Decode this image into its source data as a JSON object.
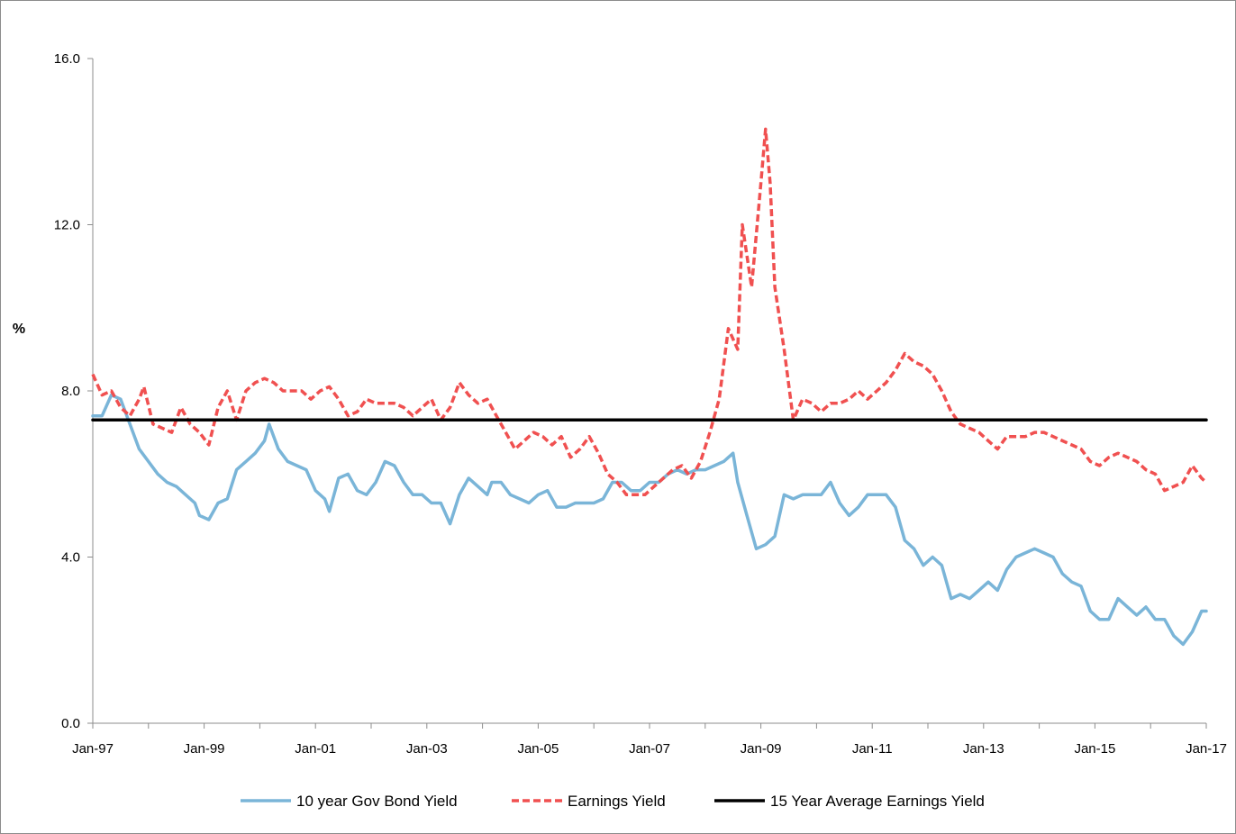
{
  "chart_data": {
    "type": "line",
    "ylabel": "%",
    "xlabel": "",
    "ylim": [
      0,
      16
    ],
    "y_ticks": [
      "0.0",
      "4.0",
      "8.0",
      "12.0",
      "16.0"
    ],
    "y_tick_values": [
      0,
      4,
      8,
      12,
      16
    ],
    "x_range": [
      "1997-01",
      "2017-01"
    ],
    "x_ticks": [
      "Jan-97",
      "Jan-99",
      "Jan-01",
      "Jan-03",
      "Jan-05",
      "Jan-07",
      "Jan-09",
      "Jan-11",
      "Jan-13",
      "Jan-15",
      "Jan-17"
    ],
    "x_tick_dates": [
      "1997-01",
      "1999-01",
      "2001-01",
      "2003-01",
      "2005-01",
      "2007-01",
      "2009-01",
      "2011-01",
      "2013-01",
      "2015-01",
      "2017-01"
    ],
    "grid": false,
    "legend_position": "bottom",
    "series": [
      {
        "name": "10 year Gov Bond Yield",
        "color": "#7ab5d8",
        "style": "solid",
        "points": [
          [
            "1997-01",
            7.4
          ],
          [
            "1997-03",
            7.4
          ],
          [
            "1997-05",
            7.9
          ],
          [
            "1997-07",
            7.8
          ],
          [
            "1997-09",
            7.2
          ],
          [
            "1997-11",
            6.6
          ],
          [
            "1998-01",
            6.3
          ],
          [
            "1998-03",
            6.0
          ],
          [
            "1998-05",
            5.8
          ],
          [
            "1998-07",
            5.7
          ],
          [
            "1998-09",
            5.5
          ],
          [
            "1998-11",
            5.3
          ],
          [
            "1998-12",
            5.0
          ],
          [
            "1999-02",
            4.9
          ],
          [
            "1999-04",
            5.3
          ],
          [
            "1999-06",
            5.4
          ],
          [
            "1999-08",
            6.1
          ],
          [
            "1999-10",
            6.3
          ],
          [
            "1999-12",
            6.5
          ],
          [
            "2000-02",
            6.8
          ],
          [
            "2000-03",
            7.2
          ],
          [
            "2000-05",
            6.6
          ],
          [
            "2000-07",
            6.3
          ],
          [
            "2000-09",
            6.2
          ],
          [
            "2000-11",
            6.1
          ],
          [
            "2001-01",
            5.6
          ],
          [
            "2001-03",
            5.4
          ],
          [
            "2001-04",
            5.1
          ],
          [
            "2001-06",
            5.9
          ],
          [
            "2001-08",
            6.0
          ],
          [
            "2001-10",
            5.6
          ],
          [
            "2001-12",
            5.5
          ],
          [
            "2002-02",
            5.8
          ],
          [
            "2002-04",
            6.3
          ],
          [
            "2002-06",
            6.2
          ],
          [
            "2002-08",
            5.8
          ],
          [
            "2002-10",
            5.5
          ],
          [
            "2002-12",
            5.5
          ],
          [
            "2003-02",
            5.3
          ],
          [
            "2003-04",
            5.3
          ],
          [
            "2003-06",
            4.8
          ],
          [
            "2003-08",
            5.5
          ],
          [
            "2003-10",
            5.9
          ],
          [
            "2003-12",
            5.7
          ],
          [
            "2004-02",
            5.5
          ],
          [
            "2004-03",
            5.8
          ],
          [
            "2004-05",
            5.8
          ],
          [
            "2004-07",
            5.5
          ],
          [
            "2004-09",
            5.4
          ],
          [
            "2004-11",
            5.3
          ],
          [
            "2005-01",
            5.5
          ],
          [
            "2005-03",
            5.6
          ],
          [
            "2005-05",
            5.2
          ],
          [
            "2005-07",
            5.2
          ],
          [
            "2005-09",
            5.3
          ],
          [
            "2005-11",
            5.3
          ],
          [
            "2006-01",
            5.3
          ],
          [
            "2006-03",
            5.4
          ],
          [
            "2006-05",
            5.8
          ],
          [
            "2006-07",
            5.8
          ],
          [
            "2006-09",
            5.6
          ],
          [
            "2006-11",
            5.6
          ],
          [
            "2007-01",
            5.8
          ],
          [
            "2007-03",
            5.8
          ],
          [
            "2007-05",
            6.0
          ],
          [
            "2007-07",
            6.1
          ],
          [
            "2007-09",
            6.0
          ],
          [
            "2007-11",
            6.1
          ],
          [
            "2008-01",
            6.1
          ],
          [
            "2008-03",
            6.2
          ],
          [
            "2008-05",
            6.3
          ],
          [
            "2008-07",
            6.5
          ],
          [
            "2008-08",
            5.8
          ],
          [
            "2008-10",
            5.0
          ],
          [
            "2008-12",
            4.2
          ],
          [
            "2009-02",
            4.3
          ],
          [
            "2009-04",
            4.5
          ],
          [
            "2009-06",
            5.5
          ],
          [
            "2009-08",
            5.4
          ],
          [
            "2009-10",
            5.5
          ],
          [
            "2009-12",
            5.5
          ],
          [
            "2010-02",
            5.5
          ],
          [
            "2010-04",
            5.8
          ],
          [
            "2010-06",
            5.3
          ],
          [
            "2010-08",
            5.0
          ],
          [
            "2010-10",
            5.2
          ],
          [
            "2010-12",
            5.5
          ],
          [
            "2011-02",
            5.5
          ],
          [
            "2011-04",
            5.5
          ],
          [
            "2011-06",
            5.2
          ],
          [
            "2011-08",
            4.4
          ],
          [
            "2011-10",
            4.2
          ],
          [
            "2011-12",
            3.8
          ],
          [
            "2012-02",
            4.0
          ],
          [
            "2012-04",
            3.8
          ],
          [
            "2012-06",
            3.0
          ],
          [
            "2012-08",
            3.1
          ],
          [
            "2012-10",
            3.0
          ],
          [
            "2012-12",
            3.2
          ],
          [
            "2013-02",
            3.4
          ],
          [
            "2013-04",
            3.2
          ],
          [
            "2013-06",
            3.7
          ],
          [
            "2013-08",
            4.0
          ],
          [
            "2013-10",
            4.1
          ],
          [
            "2013-12",
            4.2
          ],
          [
            "2014-02",
            4.1
          ],
          [
            "2014-04",
            4.0
          ],
          [
            "2014-06",
            3.6
          ],
          [
            "2014-08",
            3.4
          ],
          [
            "2014-10",
            3.3
          ],
          [
            "2014-12",
            2.7
          ],
          [
            "2015-02",
            2.5
          ],
          [
            "2015-04",
            2.5
          ],
          [
            "2015-06",
            3.0
          ],
          [
            "2015-08",
            2.8
          ],
          [
            "2015-10",
            2.6
          ],
          [
            "2015-12",
            2.8
          ],
          [
            "2016-02",
            2.5
          ],
          [
            "2016-04",
            2.5
          ],
          [
            "2016-06",
            2.1
          ],
          [
            "2016-08",
            1.9
          ],
          [
            "2016-10",
            2.2
          ],
          [
            "2016-12",
            2.7
          ],
          [
            "2017-01",
            2.7
          ]
        ]
      },
      {
        "name": "Earnings Yield",
        "color": "#f05050",
        "style": "dashed",
        "points": [
          [
            "1997-01",
            8.4
          ],
          [
            "1997-03",
            7.9
          ],
          [
            "1997-05",
            8.0
          ],
          [
            "1997-07",
            7.6
          ],
          [
            "1997-09",
            7.4
          ],
          [
            "1997-11",
            7.8
          ],
          [
            "1997-12",
            8.1
          ],
          [
            "1998-02",
            7.2
          ],
          [
            "1998-04",
            7.1
          ],
          [
            "1998-06",
            7.0
          ],
          [
            "1998-08",
            7.6
          ],
          [
            "1998-10",
            7.2
          ],
          [
            "1998-12",
            7.0
          ],
          [
            "1999-02",
            6.7
          ],
          [
            "1999-04",
            7.6
          ],
          [
            "1999-06",
            8.0
          ],
          [
            "1999-08",
            7.3
          ],
          [
            "1999-10",
            8.0
          ],
          [
            "1999-12",
            8.2
          ],
          [
            "2000-02",
            8.3
          ],
          [
            "2000-04",
            8.2
          ],
          [
            "2000-06",
            8.0
          ],
          [
            "2000-08",
            8.0
          ],
          [
            "2000-10",
            8.0
          ],
          [
            "2000-12",
            7.8
          ],
          [
            "2001-02",
            8.0
          ],
          [
            "2001-04",
            8.1
          ],
          [
            "2001-06",
            7.8
          ],
          [
            "2001-08",
            7.4
          ],
          [
            "2001-10",
            7.5
          ],
          [
            "2001-12",
            7.8
          ],
          [
            "2002-02",
            7.7
          ],
          [
            "2002-04",
            7.7
          ],
          [
            "2002-06",
            7.7
          ],
          [
            "2002-08",
            7.6
          ],
          [
            "2002-10",
            7.4
          ],
          [
            "2002-12",
            7.6
          ],
          [
            "2003-02",
            7.8
          ],
          [
            "2003-04",
            7.3
          ],
          [
            "2003-06",
            7.6
          ],
          [
            "2003-08",
            8.2
          ],
          [
            "2003-10",
            7.9
          ],
          [
            "2003-12",
            7.7
          ],
          [
            "2004-02",
            7.8
          ],
          [
            "2004-04",
            7.4
          ],
          [
            "2004-06",
            7.0
          ],
          [
            "2004-08",
            6.6
          ],
          [
            "2004-10",
            6.8
          ],
          [
            "2004-12",
            7.0
          ],
          [
            "2005-02",
            6.9
          ],
          [
            "2005-04",
            6.7
          ],
          [
            "2005-06",
            6.9
          ],
          [
            "2005-08",
            6.4
          ],
          [
            "2005-10",
            6.6
          ],
          [
            "2005-12",
            6.9
          ],
          [
            "2006-02",
            6.5
          ],
          [
            "2006-04",
            6.0
          ],
          [
            "2006-06",
            5.8
          ],
          [
            "2006-08",
            5.5
          ],
          [
            "2006-10",
            5.5
          ],
          [
            "2006-12",
            5.5
          ],
          [
            "2007-02",
            5.7
          ],
          [
            "2007-04",
            5.9
          ],
          [
            "2007-06",
            6.1
          ],
          [
            "2007-08",
            6.2
          ],
          [
            "2007-10",
            5.9
          ],
          [
            "2007-12",
            6.3
          ],
          [
            "2008-02",
            7.0
          ],
          [
            "2008-04",
            7.8
          ],
          [
            "2008-06",
            9.5
          ],
          [
            "2008-08",
            9.0
          ],
          [
            "2008-09",
            12.0
          ],
          [
            "2008-11",
            10.5
          ],
          [
            "2009-01",
            13.0
          ],
          [
            "2009-02",
            14.3
          ],
          [
            "2009-03",
            13.0
          ],
          [
            "2009-04",
            10.5
          ],
          [
            "2009-06",
            9.0
          ],
          [
            "2009-08",
            7.3
          ],
          [
            "2009-10",
            7.8
          ],
          [
            "2009-12",
            7.7
          ],
          [
            "2010-02",
            7.5
          ],
          [
            "2010-04",
            7.7
          ],
          [
            "2010-06",
            7.7
          ],
          [
            "2010-08",
            7.8
          ],
          [
            "2010-10",
            8.0
          ],
          [
            "2010-12",
            7.8
          ],
          [
            "2011-02",
            8.0
          ],
          [
            "2011-04",
            8.2
          ],
          [
            "2011-06",
            8.5
          ],
          [
            "2011-08",
            8.9
          ],
          [
            "2011-10",
            8.7
          ],
          [
            "2011-12",
            8.6
          ],
          [
            "2012-02",
            8.4
          ],
          [
            "2012-04",
            8.0
          ],
          [
            "2012-06",
            7.5
          ],
          [
            "2012-08",
            7.2
          ],
          [
            "2012-10",
            7.1
          ],
          [
            "2012-12",
            7.0
          ],
          [
            "2013-02",
            6.8
          ],
          [
            "2013-04",
            6.6
          ],
          [
            "2013-06",
            6.9
          ],
          [
            "2013-08",
            6.9
          ],
          [
            "2013-10",
            6.9
          ],
          [
            "2013-12",
            7.0
          ],
          [
            "2014-02",
            7.0
          ],
          [
            "2014-04",
            6.9
          ],
          [
            "2014-06",
            6.8
          ],
          [
            "2014-08",
            6.7
          ],
          [
            "2014-10",
            6.6
          ],
          [
            "2014-12",
            6.3
          ],
          [
            "2015-02",
            6.2
          ],
          [
            "2015-04",
            6.4
          ],
          [
            "2015-06",
            6.5
          ],
          [
            "2015-08",
            6.4
          ],
          [
            "2015-10",
            6.3
          ],
          [
            "2015-12",
            6.1
          ],
          [
            "2016-02",
            6.0
          ],
          [
            "2016-04",
            5.6
          ],
          [
            "2016-06",
            5.7
          ],
          [
            "2016-08",
            5.8
          ],
          [
            "2016-10",
            6.2
          ],
          [
            "2016-12",
            5.9
          ],
          [
            "2017-01",
            5.8
          ]
        ]
      },
      {
        "name": "15 Year Average Earnings Yield",
        "color": "#000000",
        "style": "solid",
        "points": [
          [
            "1997-01",
            7.3
          ],
          [
            "2017-01",
            7.3
          ]
        ]
      }
    ]
  }
}
